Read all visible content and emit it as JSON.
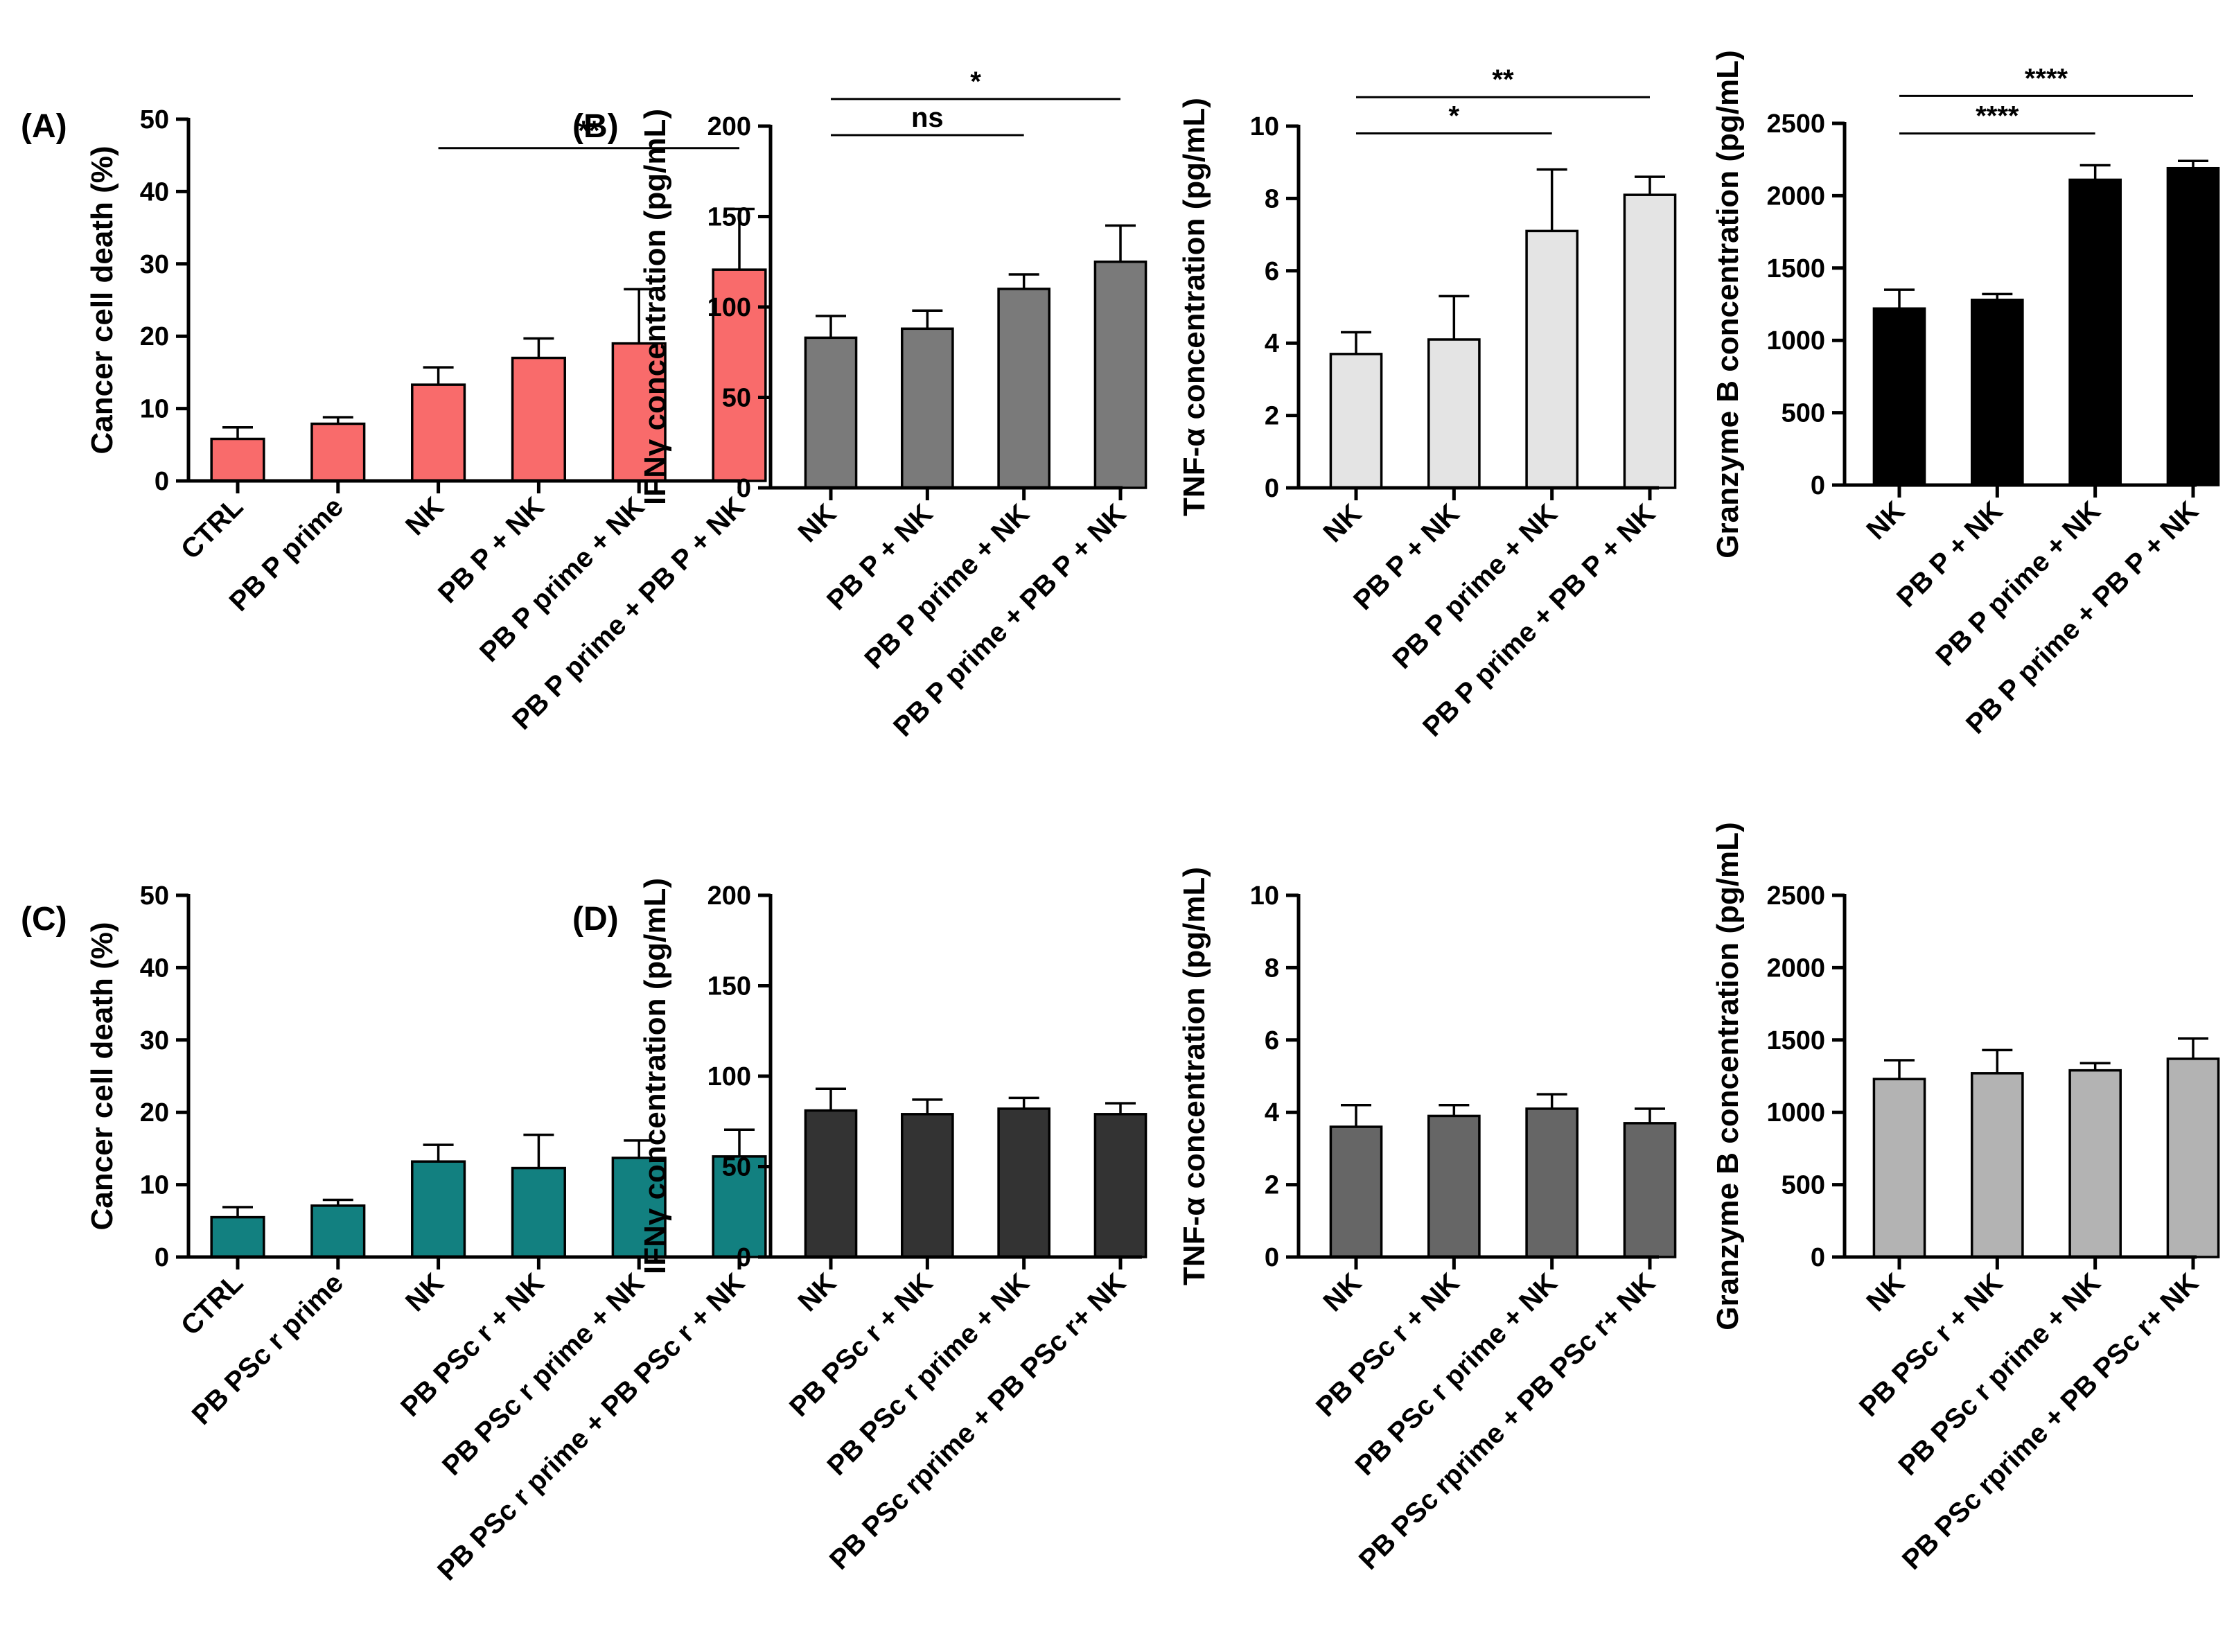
{
  "chart_data": [
    {
      "id": "A",
      "type": "bar",
      "panel_label": "(A)",
      "ylabel": "Cancer cell death (%)",
      "ylim": [
        0,
        50
      ],
      "yticks": [
        "0",
        "10",
        "20",
        "30",
        "40",
        "50"
      ],
      "categories": [
        "CTRL",
        "PB P prime",
        "NK",
        "PB P + NK",
        "PB P prime + NK",
        "PB P prime + PB P + NK"
      ],
      "values": [
        5.8,
        7.9,
        13.3,
        17.0,
        19.0,
        29.2
      ],
      "errors": [
        1.6,
        0.9,
        2.4,
        2.7,
        7.5,
        8.4
      ],
      "color": "#F96B6B",
      "significance": [
        {
          "from": 2,
          "to": 5,
          "y": 46,
          "label": "**"
        }
      ]
    },
    {
      "id": "B1",
      "type": "bar",
      "panel_label": "(B)",
      "ylabel": "IFNγ concentration  (pg/mL)",
      "ylim": [
        0,
        200
      ],
      "yticks": [
        "0",
        "50",
        "100",
        "150",
        "200"
      ],
      "categories": [
        "NK",
        "PB P + NK",
        "PB P prime + NK",
        "PB P prime + PB P + NK"
      ],
      "values": [
        83,
        88,
        110,
        125
      ],
      "errors": [
        12,
        10,
        8,
        20
      ],
      "color": "#7A7A7A",
      "significance": [
        {
          "from": 0,
          "to": 2,
          "y": 195,
          "label": "ns"
        },
        {
          "from": 0,
          "to": 3,
          "y": 215,
          "label": "*"
        }
      ]
    },
    {
      "id": "B2",
      "type": "bar",
      "panel_label": "",
      "ylabel": "TNF-α concentration (pg/mL)",
      "ylim": [
        0,
        10
      ],
      "yticks": [
        "0",
        "2",
        "4",
        "6",
        "8",
        "10"
      ],
      "categories": [
        "NK",
        "PB P + NK",
        "PB P prime + NK",
        "PB P prime + PB P + NK"
      ],
      "values": [
        3.7,
        4.1,
        7.1,
        8.1
      ],
      "errors": [
        0.6,
        1.2,
        1.7,
        0.5
      ],
      "color": "#E4E4E4",
      "significance": [
        {
          "from": 0,
          "to": 2,
          "y": 9.8,
          "label": "*"
        },
        {
          "from": 0,
          "to": 3,
          "y": 10.8,
          "label": "**"
        }
      ]
    },
    {
      "id": "B3",
      "type": "bar",
      "panel_label": "",
      "ylabel": "Granzyme B concentration (pg/mL)",
      "ylim": [
        0,
        2500
      ],
      "yticks": [
        "0",
        "500",
        "1000",
        "1500",
        "2000",
        "2500"
      ],
      "categories": [
        "NK",
        "PB P + NK",
        "PB P prime + NK",
        "PB P prime + PB P + NK"
      ],
      "values": [
        1220,
        1280,
        2110,
        2190
      ],
      "errors": [
        130,
        40,
        100,
        50
      ],
      "color": "#000000",
      "significance": [
        {
          "from": 0,
          "to": 2,
          "y": 2430,
          "label": "****"
        },
        {
          "from": 0,
          "to": 3,
          "y": 2690,
          "label": "****"
        }
      ]
    },
    {
      "id": "C",
      "type": "bar",
      "panel_label": "(C)",
      "ylabel": "Cancer cell death (%)",
      "ylim": [
        0,
        50
      ],
      "yticks": [
        "0",
        "10",
        "20",
        "30",
        "40",
        "50"
      ],
      "categories": [
        "CTRL",
        "PB PSc  r prime",
        "NK",
        "PB PSc  r + NK",
        "PB PSc  r prime + NK",
        "PB PSc  r prime + PB PSc  r + NK"
      ],
      "values": [
        5.5,
        7.1,
        13.2,
        12.3,
        13.7,
        13.9
      ],
      "errors": [
        1.4,
        0.8,
        2.3,
        4.6,
        2.4,
        3.7
      ],
      "color": "#128080",
      "significance": []
    },
    {
      "id": "D1",
      "type": "bar",
      "panel_label": "(D)",
      "ylabel": "IFNγ concentration  (pg/mL)",
      "ylim": [
        0,
        200
      ],
      "yticks": [
        "0",
        "50",
        "100",
        "150",
        "200"
      ],
      "categories": [
        "NK",
        "PB PSc  r + NK",
        "PB PSc  r prime + NK",
        "PB PSc  rprime + PB PSc  r+ NK"
      ],
      "values": [
        81,
        79,
        82,
        79
      ],
      "errors": [
        12,
        8,
        6,
        6
      ],
      "color": "#333333",
      "significance": []
    },
    {
      "id": "D2",
      "type": "bar",
      "panel_label": "",
      "ylabel": "TNF-α concentration (pg/mL)",
      "ylim": [
        0,
        10
      ],
      "yticks": [
        "0",
        "2",
        "4",
        "6",
        "8",
        "10"
      ],
      "categories": [
        "NK",
        "PB PSc  r + NK",
        "PB PSc  r prime + NK",
        "PB PSc  rprime + PB PSc  r+ NK"
      ],
      "values": [
        3.6,
        3.9,
        4.1,
        3.7
      ],
      "errors": [
        0.6,
        0.3,
        0.4,
        0.4
      ],
      "color": "#666666",
      "significance": []
    },
    {
      "id": "D3",
      "type": "bar",
      "panel_label": "",
      "ylabel": "Granzyme B concentration (pg/mL)",
      "ylim": [
        0,
        2500
      ],
      "yticks": [
        "0",
        "500",
        "1000",
        "1500",
        "2000",
        "2500"
      ],
      "categories": [
        "NK",
        "PB PSc  r + NK",
        "PB PSc  r prime + NK",
        "PB PSc  rprime + PB PSc  r+ NK"
      ],
      "values": [
        1230,
        1270,
        1290,
        1370
      ],
      "errors": [
        130,
        160,
        50,
        140
      ],
      "color": "#B3B3B3",
      "significance": []
    }
  ]
}
